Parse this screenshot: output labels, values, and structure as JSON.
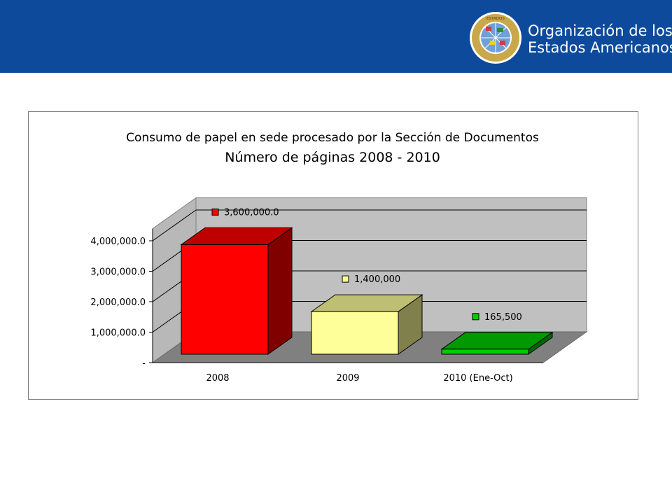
{
  "header": {
    "org_line1": "Organización de los",
    "org_line2": "Estados Americanos",
    "seal_text": "ORGANIZACION DE LOS ESTADOS AMERICANOS",
    "bg_color": "#0d4a9c"
  },
  "chart_data": {
    "type": "bar",
    "title": "Consumo de papel en sede procesado por la Sección de Documentos",
    "subtitle": "Número de páginas 2008 - 2010",
    "categories": [
      "2008",
      "2009",
      "2010 (Ene-Oct)"
    ],
    "values": [
      3600000,
      1400000,
      165500
    ],
    "data_labels": [
      "3,600,000.0",
      "1,400,000",
      "165,500"
    ],
    "bar_colors": [
      "#ff0000",
      "#ffff99",
      "#00cc00"
    ],
    "y_ticks": [
      0,
      1000000,
      2000000,
      3000000,
      4000000
    ],
    "y_tick_labels": [
      "-",
      "1,000,000.0",
      "2,000,000.0",
      "3,000,000.0",
      "4,000,000.0"
    ],
    "ylim": [
      0,
      4000000
    ],
    "style": "3d-column",
    "legend": "none",
    "grid": true
  }
}
